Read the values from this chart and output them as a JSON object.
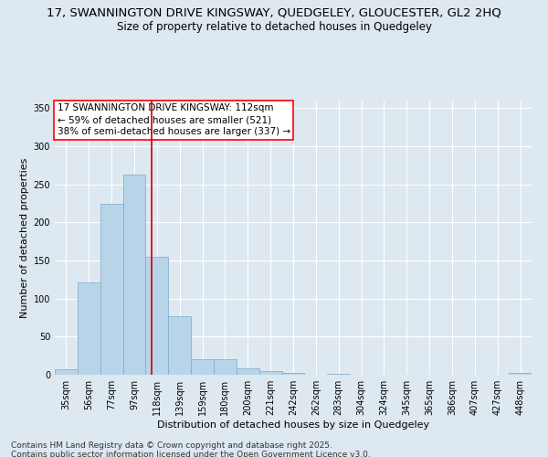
{
  "title_line1": "17, SWANNINGTON DRIVE KINGSWAY, QUEDGELEY, GLOUCESTER, GL2 2HQ",
  "title_line2": "Size of property relative to detached houses in Quedgeley",
  "xlabel": "Distribution of detached houses by size in Quedgeley",
  "ylabel": "Number of detached properties",
  "categories": [
    "35sqm",
    "56sqm",
    "77sqm",
    "97sqm",
    "118sqm",
    "139sqm",
    "159sqm",
    "180sqm",
    "200sqm",
    "221sqm",
    "242sqm",
    "262sqm",
    "283sqm",
    "304sqm",
    "324sqm",
    "345sqm",
    "365sqm",
    "386sqm",
    "407sqm",
    "427sqm",
    "448sqm"
  ],
  "values": [
    7,
    121,
    225,
    263,
    155,
    77,
    20,
    20,
    8,
    5,
    3,
    0,
    1,
    0,
    0,
    0,
    0,
    0,
    0,
    0,
    3
  ],
  "bar_color": "#b8d4e8",
  "bar_edge_color": "#7baac8",
  "bar_alpha": 1.0,
  "vline_x": 3.78,
  "vline_color": "#cc0000",
  "annotation_text": "17 SWANNINGTON DRIVE KINGSWAY: 112sqm\n← 59% of detached houses are smaller (521)\n38% of semi-detached houses are larger (337) →",
  "ylim": [
    0,
    360
  ],
  "yticks": [
    0,
    50,
    100,
    150,
    200,
    250,
    300,
    350
  ],
  "bg_color": "#dde8f0",
  "grid_color": "#ffffff",
  "footer_line1": "Contains HM Land Registry data © Crown copyright and database right 2025.",
  "footer_line2": "Contains public sector information licensed under the Open Government Licence v3.0.",
  "title_fontsize": 9.5,
  "subtitle_fontsize": 8.5,
  "axis_label_fontsize": 8,
  "tick_fontsize": 7,
  "annotation_fontsize": 7.5,
  "footer_fontsize": 6.5
}
